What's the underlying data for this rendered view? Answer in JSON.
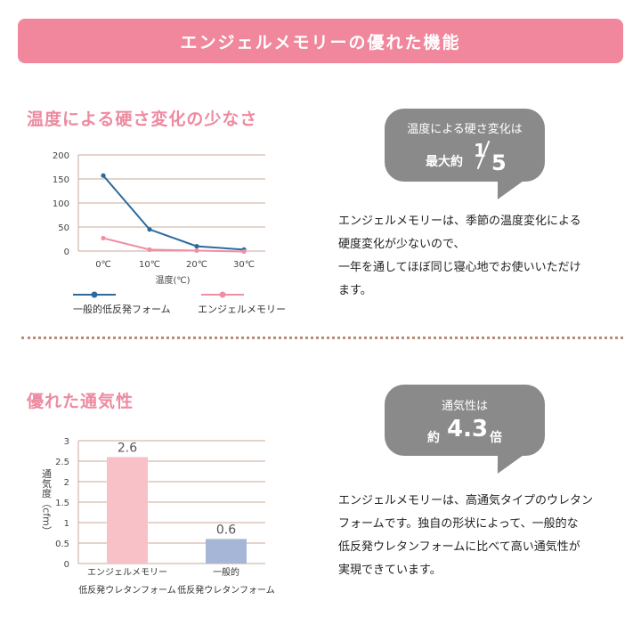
{
  "banner": {
    "title": "エンジェルメモリーの優れた機能"
  },
  "section1": {
    "title": "温度による硬さ変化の少なさ",
    "bubble": {
      "line1": "温度による硬さ変化は",
      "prefix": "最大約",
      "numerator": "1",
      "denominator": "5"
    },
    "description": [
      "エンジェルメモリーは、季節の温度変化による",
      "硬度変化が少ないので、",
      "一年を通してほぼ同じ寝心地でお使いいただけ",
      "ます。"
    ]
  },
  "section2": {
    "title": "優れた通気性",
    "bubble": {
      "line1": "通気性は",
      "prefix": "約",
      "value": "4.3",
      "suffix": "倍"
    },
    "description": [
      "エンジェルメモリーは、高通気タイプのウレタン",
      "フォームです。独自の形状によって、一般的な",
      "低反発ウレタンフォームに比べて高い通気性が",
      "実現できています。"
    ]
  },
  "colors": {
    "accent": "#f0879c",
    "blue_series": "#2c6a9e",
    "pink_series": "#f08ea3",
    "bar_pink": "#f8c1c8",
    "bar_blue": "#a6b6d6",
    "bubble": "#8a8a8a",
    "grid": "#c9a89a"
  },
  "chart_data": [
    {
      "type": "line",
      "title": "",
      "xlabel": "温度(℃)",
      "ylabel": "",
      "categories": [
        "0℃",
        "10℃",
        "20℃",
        "30℃"
      ],
      "ylim": [
        0,
        200
      ],
      "yticks": [
        0,
        50,
        100,
        150,
        200
      ],
      "grid": true,
      "legend": "bottom",
      "series": [
        {
          "name": "一般的低反発フォーム",
          "values": [
            157,
            45,
            10,
            3
          ],
          "color": "#2c6a9e"
        },
        {
          "name": "エンジェルメモリー",
          "values": [
            27,
            3,
            1,
            -1
          ],
          "color": "#f08ea3"
        }
      ]
    },
    {
      "type": "bar",
      "title": "",
      "ylabel": "通気度（cfm）",
      "xlabel": "",
      "categories": [
        {
          "line1": "エンジェルメモリー",
          "line2": "低反発ウレタンフォーム"
        },
        {
          "line1": "一般的",
          "line2": "低反発ウレタンフォーム"
        }
      ],
      "values": [
        2.6,
        0.6
      ],
      "value_labels": [
        "2.6",
        "0.6"
      ],
      "colors": [
        "#f8c1c8",
        "#a6b6d6"
      ],
      "ylim": [
        0,
        3
      ],
      "yticks": [
        "0",
        "0.5",
        "1",
        "1.5",
        "2",
        "2.5",
        "3"
      ],
      "grid": true
    }
  ]
}
